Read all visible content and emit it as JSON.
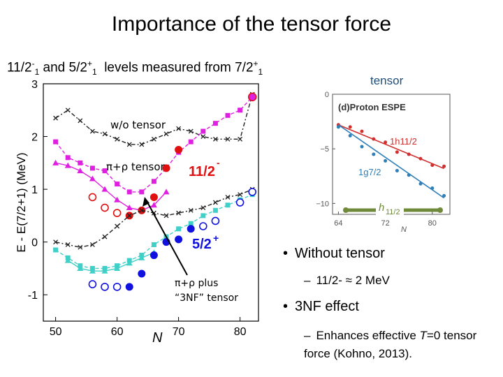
{
  "title": "Importance of the tensor force",
  "subtitle": {
    "part1": "11/2",
    "part1_sup": "-",
    "part1_sub": "1",
    "part2": " and 5/2",
    "part2_sup": "+",
    "part2_sub": "1",
    "part3": "  levels measured from 7/2",
    "part3_sup": "+",
    "part3_sub": "1"
  },
  "tensor_label": "tensor",
  "bullets": {
    "b1": "Without tensor",
    "b1a": "11/2- ≈ 2 MeV",
    "b2": "3NF effect",
    "b2a_pre": "Enhances effective ",
    "b2a_T": "T",
    "b2a_post": "=0 tensor force (Kohno, 2013)."
  },
  "main_chart_labels": {
    "ylabel": "E - E(7/2+1) (MeV)",
    "xlabel": "N",
    "label_wo_tensor": "w/o tensor",
    "label_pirho_tensor": "π+ρ tensor",
    "label_11_2": "11/2",
    "label_11_2_sup": "-",
    "label_5_2": "5/2",
    "label_5_2_sup": "+",
    "label_3nf_line1": "π+ρ plus",
    "label_3nf_line2": "“3NF” tensor"
  },
  "inset_labels": {
    "title": "(d)Proton ESPE",
    "h11": "1h11/2",
    "g7": "1g7/2",
    "h11_bar": "h",
    "h11_bar_sub": "11/2",
    "xlabel": "N"
  },
  "colors": {
    "magenta": "#e020e0",
    "cyan": "#40d0c8",
    "red": "#e01010",
    "blue": "#1010e0",
    "black": "#222222",
    "inset_red": "#d03030",
    "inset_blue": "#2f7fb8",
    "olive": "#6e8a3a"
  },
  "chart_data": [
    {
      "type": "line",
      "xlim": [
        48,
        83
      ],
      "ylim": [
        -1.5,
        3
      ],
      "xticks": [
        50,
        60,
        70,
        80
      ],
      "yticks": [
        -1,
        0,
        1,
        2,
        3
      ],
      "ytick_labels": [
        "-1",
        "0",
        "1",
        "2",
        "3"
      ],
      "series": [
        {
          "name": "w/o tensor",
          "style": "black-dashdot-x",
          "x": [
            50,
            52,
            54,
            56,
            58,
            60,
            62,
            64,
            66,
            68,
            70,
            72,
            74,
            76,
            78,
            80,
            82
          ],
          "y": [
            2.35,
            2.5,
            2.3,
            2.1,
            2.05,
            1.95,
            1.85,
            1.85,
            1.95,
            2.05,
            2.15,
            2.1,
            2.0,
            1.95,
            1.95,
            1.95,
            2.8
          ]
        },
        {
          "name": "11/2 w/o 3NF",
          "style": "magenta-square",
          "x": [
            50,
            52,
            54,
            56,
            58,
            60,
            62,
            64,
            66,
            68,
            70,
            72,
            74,
            76,
            78,
            80,
            82
          ],
          "y": [
            1.9,
            1.6,
            1.5,
            1.4,
            1.35,
            1.1,
            0.95,
            0.95,
            1.15,
            1.4,
            1.7,
            1.9,
            2.1,
            2.25,
            2.4,
            2.5,
            2.75
          ]
        },
        {
          "name": "11/2 triangle",
          "style": "magenta-triangle",
          "x": [
            50,
            52,
            54,
            56,
            58,
            60,
            62,
            64,
            66,
            68
          ],
          "y": [
            1.5,
            1.45,
            1.35,
            1.2,
            1.0,
            0.8,
            0.65,
            0.6,
            0.7,
            0.95
          ]
        },
        {
          "name": "11/2 expt open",
          "style": "red-open-circle",
          "x": [
            56,
            58,
            60
          ],
          "y": [
            0.85,
            0.65,
            0.55
          ]
        },
        {
          "name": "11/2 expt filled",
          "style": "red-filled-circle",
          "x": [
            62,
            64,
            66,
            68,
            70
          ],
          "y": [
            0.5,
            0.6,
            0.85,
            1.4,
            1.75
          ]
        },
        {
          "name": "5/2 upper",
          "style": "black-dashdot-x",
          "x": [
            50,
            52,
            54,
            56,
            58,
            60,
            62,
            64,
            66,
            68,
            70,
            72,
            74,
            76,
            78,
            80,
            82
          ],
          "y": [
            0.0,
            -0.05,
            -0.1,
            -0.05,
            0.1,
            0.3,
            0.5,
            0.6,
            0.55,
            0.5,
            0.55,
            0.6,
            0.65,
            0.75,
            0.85,
            0.9,
            1.0
          ]
        },
        {
          "name": "5/2 cyan square",
          "style": "cyan-square",
          "x": [
            50,
            52,
            54,
            56,
            58,
            60,
            62,
            64,
            66,
            68,
            70,
            72,
            74,
            76,
            78,
            80,
            82
          ],
          "y": [
            -0.15,
            -0.3,
            -0.45,
            -0.5,
            -0.5,
            -0.45,
            -0.35,
            -0.25,
            -0.05,
            0.1,
            0.25,
            0.35,
            0.5,
            0.6,
            0.7,
            0.8,
            0.9
          ]
        },
        {
          "name": "5/2 cyan triangle",
          "style": "cyan-triangle",
          "x": [
            52,
            54,
            56,
            58,
            60,
            62,
            64,
            66
          ],
          "y": [
            -0.35,
            -0.5,
            -0.55,
            -0.55,
            -0.5,
            -0.4,
            -0.3,
            -0.2
          ]
        },
        {
          "name": "5/2 expt open",
          "style": "blue-open-circle",
          "x": [
            56,
            58,
            60,
            74,
            76,
            80,
            82
          ],
          "y": [
            -0.8,
            -0.85,
            -0.85,
            0.3,
            0.4,
            0.75,
            0.95
          ]
        },
        {
          "name": "5/2 expt filled",
          "style": "blue-filled-circle",
          "x": [
            62,
            64,
            66,
            68,
            70,
            72
          ],
          "y": [
            -0.85,
            -0.6,
            -0.25,
            0.0,
            0.05,
            0.25
          ]
        },
        {
          "name": "magenta endpoint",
          "style": "magenta-big-circle",
          "x": [
            82
          ],
          "y": [
            2.75
          ]
        }
      ]
    },
    {
      "type": "scatter",
      "title": "(d)Proton ESPE",
      "xlim": [
        63,
        83
      ],
      "ylim": [
        -11,
        0
      ],
      "xticks": [
        64,
        72,
        80
      ],
      "yticks": [
        0,
        -5,
        -10
      ],
      "ytick_labels": [
        "0",
        "−5",
        "−10"
      ],
      "series": [
        {
          "name": "1h11/2",
          "style": "inset-red",
          "x": [
            64,
            66,
            68,
            70,
            72,
            74,
            76,
            78,
            80,
            82
          ],
          "y": [
            -2.8,
            -3.0,
            -3.4,
            -4.1,
            -4.4,
            -5.3,
            -5.5,
            -5.9,
            -6.5,
            -6.6
          ],
          "fit": [
            [
              64,
              -2.8
            ],
            [
              82,
              -6.8
            ]
          ]
        },
        {
          "name": "1g7/2",
          "style": "inset-blue",
          "x": [
            64,
            66,
            68,
            70,
            72,
            74,
            76,
            78,
            80,
            82
          ],
          "y": [
            -3.0,
            -3.8,
            -4.8,
            -5.5,
            -6.1,
            -7.0,
            -7.4,
            -8.2,
            -8.6,
            -9.3
          ],
          "fit": [
            [
              64,
              -2.8
            ],
            [
              82,
              -9.5
            ]
          ]
        }
      ]
    }
  ]
}
